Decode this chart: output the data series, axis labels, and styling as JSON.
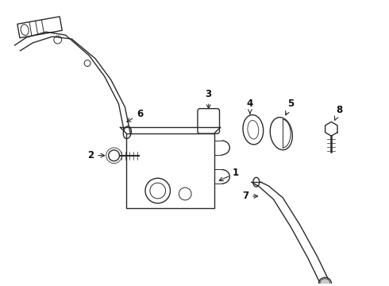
{
  "bg_color": "#ffffff",
  "line_color": "#2a2a2a",
  "label_color": "#111111",
  "lw": 1.0,
  "figsize": [
    4.9,
    3.6
  ],
  "dpi": 100
}
